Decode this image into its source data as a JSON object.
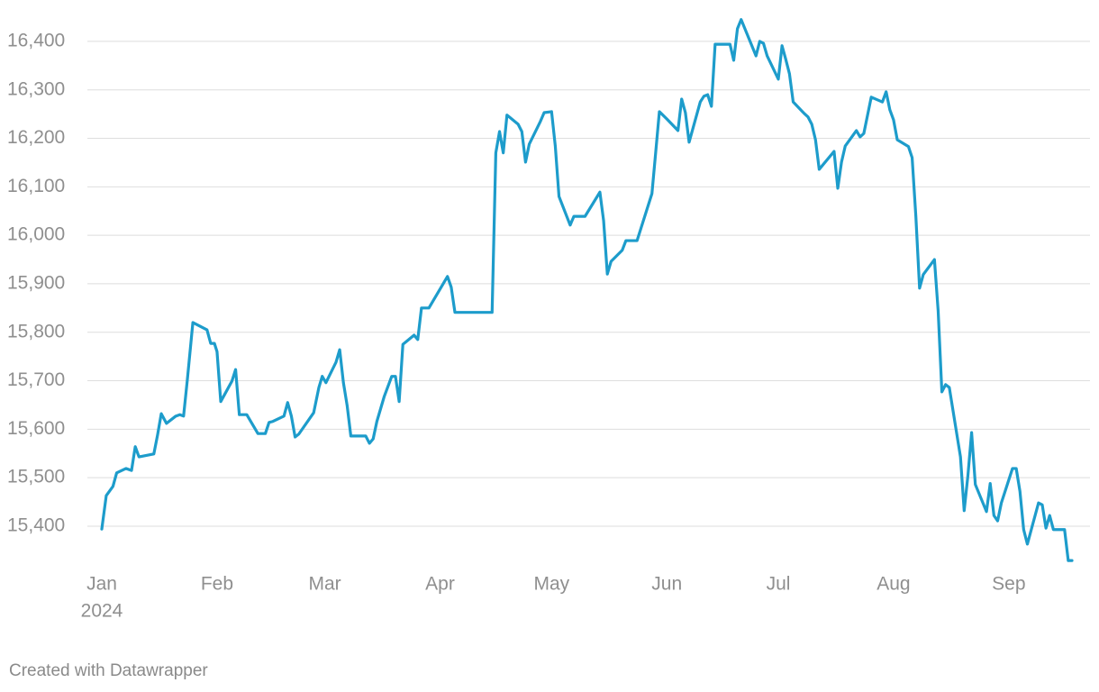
{
  "chart_data": {
    "type": "line",
    "color": "#1d9ccb",
    "grid": true,
    "credit": "Created with Datawrapper",
    "year_label": "2024",
    "xlim": [
      0,
      261
    ],
    "xticks": [
      {
        "value": 0,
        "label": "Jan"
      },
      {
        "value": 31,
        "label": "Feb"
      },
      {
        "value": 60,
        "label": "Mar"
      },
      {
        "value": 91,
        "label": "Apr"
      },
      {
        "value": 121,
        "label": "May"
      },
      {
        "value": 152,
        "label": "Jun"
      },
      {
        "value": 182,
        "label": "Jul"
      },
      {
        "value": 213,
        "label": "Aug"
      },
      {
        "value": 244,
        "label": "Sep"
      }
    ],
    "ylim": [
      15320,
      16450
    ],
    "yticks": [
      {
        "value": 15400,
        "label": "15,400"
      },
      {
        "value": 15500,
        "label": "15,500"
      },
      {
        "value": 15600,
        "label": "15,600"
      },
      {
        "value": 15700,
        "label": "15,700"
      },
      {
        "value": 15800,
        "label": "15,800"
      },
      {
        "value": 15900,
        "label": "15,900"
      },
      {
        "value": 16000,
        "label": "16,000"
      },
      {
        "value": 16100,
        "label": "16,100"
      },
      {
        "value": 16200,
        "label": "16,200"
      },
      {
        "value": 16300,
        "label": "16,300"
      },
      {
        "value": 16400,
        "label": "16,400"
      }
    ],
    "x": [
      0,
      1.2,
      3,
      4,
      6.5,
      8,
      9,
      10,
      14,
      15,
      16,
      17.4,
      19.9,
      21,
      22,
      23,
      24.5,
      28.3,
      29.3,
      30.3,
      31,
      32,
      35,
      36,
      37,
      39,
      42,
      44,
      45,
      46,
      49,
      50,
      51,
      52,
      53,
      57,
      58.4,
      59.3,
      60.3,
      63,
      64,
      65,
      66,
      67,
      71,
      72,
      73,
      74,
      76,
      78,
      79,
      80,
      81,
      84,
      85,
      86,
      88,
      91,
      93,
      94,
      95,
      105,
      106,
      107,
      108,
      109,
      112,
      113,
      114,
      115,
      118,
      119,
      121,
      122,
      123,
      126,
      127,
      130,
      134,
      135,
      136,
      137,
      140,
      141,
      144,
      148,
      149,
      150,
      152,
      155,
      156,
      157,
      158,
      161,
      162,
      163,
      164,
      165,
      168,
      169,
      170,
      171,
      172,
      176,
      177,
      178,
      179,
      182,
      183,
      184,
      185,
      186,
      189,
      190,
      191,
      192,
      193,
      197,
      198,
      199,
      200,
      203,
      204,
      205,
      207,
      210,
      211,
      212,
      213,
      214,
      217,
      218,
      219,
      220,
      221,
      224,
      225,
      226,
      227,
      228,
      231,
      232,
      233,
      234,
      235,
      238,
      239,
      240,
      241,
      242,
      245,
      246,
      247,
      248,
      249,
      252,
      253,
      254,
      255,
      256,
      259,
      260,
      261
    ],
    "values": [
      15394,
      15463,
      15482,
      15510,
      15519,
      15515,
      15564,
      15543,
      15549,
      15588,
      15632,
      15612,
      15627,
      15630,
      15627,
      15701,
      15820,
      15805,
      15777,
      15777,
      15760,
      15657,
      15699,
      15723,
      15630,
      15630,
      15591,
      15591,
      15614,
      15616,
      15627,
      15655,
      15627,
      15584,
      15590,
      15634,
      15686,
      15709,
      15696,
      15738,
      15764,
      15696,
      15649,
      15586,
      15586,
      15571,
      15580,
      15616,
      15668,
      15709,
      15709,
      15657,
      15775,
      15794,
      15785,
      15850,
      15850,
      15889,
      15915,
      15893,
      15841,
      15841,
      16170,
      16214,
      16170,
      16248,
      16229,
      16214,
      16151,
      16188,
      16235,
      16253,
      16255,
      16184,
      16080,
      16021,
      16039,
      16039,
      16089,
      16030,
      15920,
      15946,
      15969,
      15989,
      15989,
      16086,
      16170,
      16255,
      16240,
      16216,
      16281,
      16253,
      16192,
      16275,
      16287,
      16290,
      16266,
      16394,
      16394,
      16394,
      16361,
      16426,
      16445,
      16370,
      16400,
      16396,
      16370,
      16322,
      16391,
      16363,
      16333,
      16275,
      16251,
      16244,
      16229,
      16197,
      16136,
      16173,
      16097,
      16151,
      16184,
      16216,
      16203,
      16210,
      16285,
      16275,
      16296,
      16259,
      16238,
      16197,
      16183,
      16160,
      16039,
      15891,
      15919,
      15950,
      15844,
      15677,
      15692,
      15686,
      15543,
      15432,
      15504,
      15593,
      15486,
      15430,
      15488,
      15422,
      15411,
      15448,
      15519,
      15519,
      15472,
      15393,
      15363,
      15448,
      15444,
      15396,
      15422,
      15393,
      15393,
      15329,
      15329
    ]
  }
}
